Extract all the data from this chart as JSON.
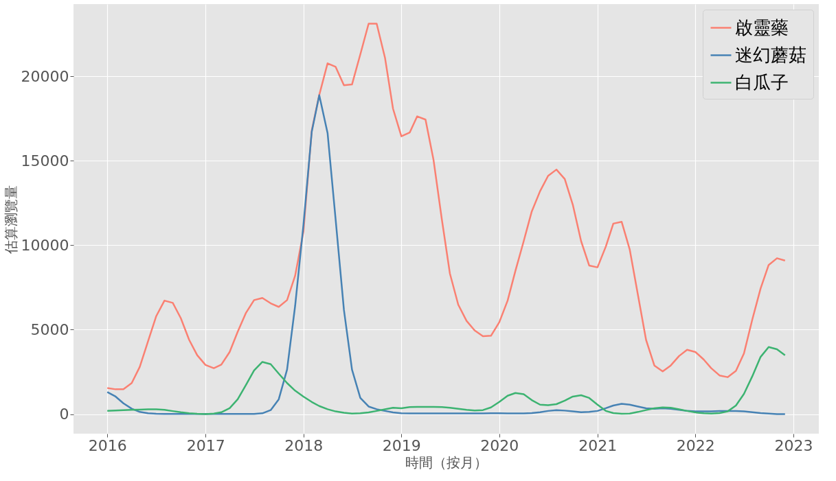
{
  "chart_data": {
    "type": "line",
    "xlabel": "時間（按月）",
    "ylabel": "估算瀏覽量",
    "x": [
      "2016-01",
      "2016-02",
      "2016-03",
      "2016-04",
      "2016-05",
      "2016-06",
      "2016-07",
      "2016-08",
      "2016-09",
      "2016-10",
      "2016-11",
      "2016-12",
      "2017-01",
      "2017-02",
      "2017-03",
      "2017-04",
      "2017-05",
      "2017-06",
      "2017-07",
      "2017-08",
      "2017-09",
      "2017-10",
      "2017-11",
      "2017-12",
      "2018-01",
      "2018-02",
      "2018-03",
      "2018-04",
      "2018-05",
      "2018-06",
      "2018-07",
      "2018-08",
      "2018-09",
      "2018-10",
      "2018-11",
      "2018-12",
      "2019-01",
      "2019-02",
      "2019-03",
      "2019-04",
      "2019-05",
      "2019-06",
      "2019-07",
      "2019-08",
      "2019-09",
      "2019-10",
      "2019-11",
      "2019-12",
      "2020-01",
      "2020-02",
      "2020-03",
      "2020-04",
      "2020-05",
      "2020-06",
      "2020-07",
      "2020-08",
      "2020-09",
      "2020-10",
      "2020-11",
      "2020-12",
      "2021-01",
      "2021-02",
      "2021-03",
      "2021-04",
      "2021-05",
      "2021-06",
      "2021-07",
      "2021-08",
      "2021-09",
      "2021-10",
      "2021-11",
      "2021-12",
      "2022-01",
      "2022-02",
      "2022-03",
      "2022-04",
      "2022-05",
      "2022-06",
      "2022-07",
      "2022-08",
      "2022-09",
      "2022-10",
      "2022-11",
      "2022-12"
    ],
    "series": [
      {
        "name": "啟靈藥",
        "color": "#fa8072",
        "values": [
          1550,
          1470,
          1470,
          1840,
          2800,
          4320,
          5790,
          6720,
          6590,
          5680,
          4400,
          3490,
          2910,
          2720,
          2930,
          3680,
          4880,
          6000,
          6750,
          6880,
          6560,
          6350,
          6750,
          8190,
          10800,
          16800,
          18900,
          20770,
          20560,
          19470,
          19520,
          21300,
          23120,
          23120,
          21100,
          18080,
          16450,
          16670,
          17630,
          17440,
          15040,
          11520,
          8320,
          6480,
          5520,
          4960,
          4610,
          4640,
          5440,
          6720,
          8480,
          10240,
          12000,
          13200,
          14110,
          14480,
          13920,
          12400,
          10240,
          8800,
          8690,
          9920,
          11280,
          11390,
          9760,
          7040,
          4400,
          2880,
          2530,
          2880,
          3440,
          3810,
          3680,
          3230,
          2720,
          2290,
          2190,
          2560,
          3600,
          5600,
          7440,
          8830,
          9230,
          9090
        ]
      },
      {
        "name": "迷幻蘑菇",
        "color": "#4682b4",
        "values": [
          1310,
          1040,
          640,
          320,
          130,
          50,
          20,
          10,
          10,
          10,
          10,
          10,
          10,
          10,
          10,
          10,
          10,
          10,
          10,
          50,
          240,
          880,
          2640,
          6400,
          11200,
          16720,
          18880,
          16640,
          11520,
          6160,
          2640,
          960,
          450,
          290,
          190,
          100,
          50,
          40,
          40,
          40,
          40,
          40,
          40,
          40,
          40,
          40,
          40,
          50,
          50,
          40,
          40,
          40,
          60,
          110,
          190,
          240,
          210,
          160,
          110,
          130,
          190,
          350,
          510,
          610,
          560,
          450,
          350,
          320,
          350,
          320,
          260,
          190,
          160,
          160,
          160,
          180,
          180,
          180,
          160,
          110,
          60,
          30,
          0,
          0
        ]
      },
      {
        "name": "白瓜子",
        "color": "#3cb371",
        "values": [
          190,
          220,
          240,
          260,
          270,
          290,
          290,
          260,
          180,
          110,
          50,
          20,
          0,
          30,
          110,
          350,
          880,
          1730,
          2590,
          3090,
          2960,
          2400,
          1840,
          1390,
          1040,
          720,
          480,
          290,
          160,
          80,
          30,
          50,
          100,
          190,
          290,
          380,
          350,
          420,
          430,
          430,
          430,
          420,
          380,
          320,
          260,
          220,
          240,
          400,
          720,
          1090,
          1250,
          1180,
          830,
          560,
          530,
          590,
          800,
          1040,
          1120,
          960,
          560,
          190,
          60,
          20,
          30,
          130,
          240,
          350,
          400,
          380,
          290,
          190,
          100,
          50,
          30,
          60,
          160,
          510,
          1200,
          2240,
          3390,
          3970,
          3840,
          3490
        ]
      }
    ],
    "xlim": [
      "2015-08-28",
      "2023-04-06"
    ],
    "xticks": [
      "2016",
      "2017",
      "2018",
      "2019",
      "2020",
      "2021",
      "2022",
      "2023"
    ],
    "ylim": [
      -1156,
      24276
    ],
    "yticks": [
      0,
      5000,
      10000,
      15000,
      20000
    ],
    "grid": true,
    "legend": "top right"
  }
}
